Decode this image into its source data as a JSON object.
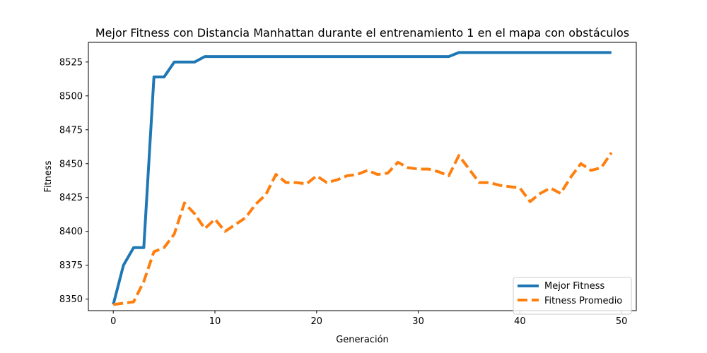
{
  "chart_data": {
    "type": "line",
    "title": "Mejor Fitness con Distancia Manhattan durante el entrenamiento 1 en el mapa con obstáculos",
    "xlabel": "Generación",
    "ylabel": "Fitness",
    "xlim": [
      -2.45,
      51.45
    ],
    "ylim": [
      8341.5,
      8539.5
    ],
    "xticks": [
      0,
      10,
      20,
      30,
      40,
      50
    ],
    "yticks": [
      8350,
      8375,
      8400,
      8425,
      8450,
      8475,
      8500,
      8525
    ],
    "grid": false,
    "legend_position": "lower-right",
    "x": [
      0,
      1,
      2,
      3,
      4,
      5,
      6,
      7,
      8,
      9,
      10,
      11,
      12,
      13,
      14,
      15,
      16,
      17,
      18,
      19,
      20,
      21,
      22,
      23,
      24,
      25,
      26,
      27,
      28,
      29,
      30,
      31,
      32,
      33,
      34,
      35,
      36,
      37,
      38,
      39,
      40,
      41,
      42,
      43,
      44,
      45,
      46,
      47,
      48,
      49
    ],
    "series": [
      {
        "name": "Mejor Fitness",
        "color": "#1f77b4",
        "dash": "solid",
        "values": [
          8346,
          8375,
          8388,
          8388,
          8514,
          8514,
          8525,
          8525,
          8525,
          8529,
          8529,
          8529,
          8529,
          8529,
          8529,
          8529,
          8529,
          8529,
          8529,
          8529,
          8529,
          8529,
          8529,
          8529,
          8529,
          8529,
          8529,
          8529,
          8529,
          8529,
          8529,
          8529,
          8529,
          8529,
          8532,
          8532,
          8532,
          8532,
          8532,
          8532,
          8532,
          8532,
          8532,
          8532,
          8532,
          8532,
          8532,
          8532,
          8532,
          8532
        ]
      },
      {
        "name": "Fitness Promedio",
        "color": "#ff7f0e",
        "dash": "dashed",
        "values": [
          8346,
          8347,
          8348,
          8363,
          8385,
          8388,
          8398,
          8421,
          8413,
          8402,
          8409,
          8400,
          8405,
          8410,
          8420,
          8427,
          8442,
          8436,
          8436,
          8435,
          8441,
          8436,
          8438,
          8441,
          8442,
          8445,
          8442,
          8443,
          8451,
          8447,
          8446,
          8446,
          8444,
          8441,
          8456,
          8446,
          8436,
          8436,
          8434,
          8433,
          8432,
          8422,
          8428,
          8432,
          8428,
          8440,
          8450,
          8445,
          8447,
          8458
        ]
      }
    ]
  }
}
